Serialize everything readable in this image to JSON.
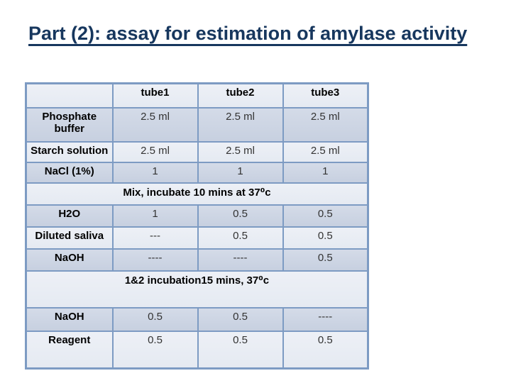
{
  "title": "Part (2): assay for estimation of amylase activity",
  "colors": {
    "title_text": "#17375E",
    "table_border": "#7D9BC3",
    "band_dark": "#CDD5E3",
    "band_light": "#E9EDF4",
    "text": "#000000"
  },
  "table": {
    "headers": [
      "",
      "tube1",
      "tube2",
      "tube3"
    ],
    "rows": [
      {
        "label": "Phosphate buffer",
        "values": [
          "2.5 ml",
          "2.5 ml",
          "2.5 ml"
        ]
      },
      {
        "label": "Starch solution",
        "values": [
          "2.5 ml",
          "2.5 ml",
          "2.5 ml"
        ]
      },
      {
        "label": "NaCl (1%)",
        "values": [
          "1",
          "1",
          "1"
        ]
      },
      {
        "label": "H2O",
        "values": [
          "1",
          "0.5",
          "0.5"
        ]
      },
      {
        "label": "Diluted saliva",
        "values": [
          "---",
          "0.5",
          "0.5"
        ]
      },
      {
        "label": "NaOH",
        "values": [
          "----",
          "----",
          "0.5"
        ]
      },
      {
        "label": "NaOH",
        "values": [
          "0.5",
          "0.5",
          "----"
        ]
      },
      {
        "label": "Reagent",
        "values": [
          "0.5",
          "0.5",
          "0.5"
        ]
      }
    ],
    "notes": {
      "mix": "Mix, incubate 10 mins at 37⁰c",
      "incubation": "1&2 incubation15 mins, 37⁰c"
    }
  }
}
